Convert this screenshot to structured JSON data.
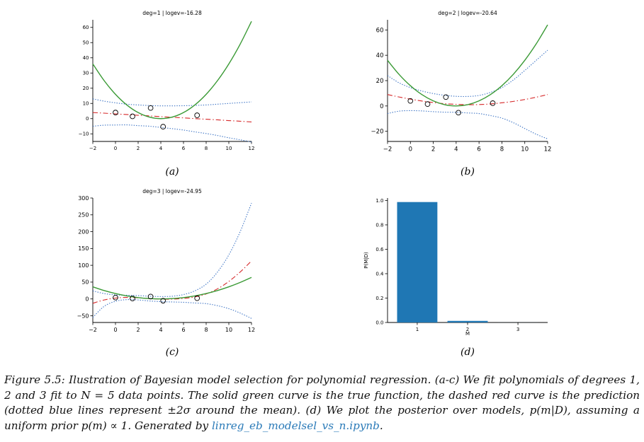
{
  "chart_data": [
    {
      "type": "line",
      "panel": "a",
      "title": "deg=1 | logev=-16.28",
      "xlim": [
        -2,
        12
      ],
      "ylim": [
        -15,
        65
      ],
      "xticks": [
        -2,
        0,
        2,
        4,
        6,
        8,
        10,
        12
      ],
      "yticks": [
        -10,
        0,
        10,
        20,
        30,
        40,
        50,
        60
      ],
      "x": [
        -2,
        -1,
        0,
        1,
        2,
        3,
        4,
        5,
        6,
        7,
        8,
        9,
        10,
        11,
        12
      ],
      "series": [
        {
          "name": "true function",
          "style": "solid",
          "color": "#3a9a35",
          "values": [
            36,
            25,
            16,
            9,
            4,
            1,
            0,
            1,
            4,
            9,
            16,
            25,
            36,
            49,
            64
          ]
        },
        {
          "name": "prediction",
          "style": "dashdot",
          "color": "#d62728",
          "values": [
            4,
            3.6,
            3.1,
            2.7,
            2.2,
            1.8,
            1.3,
            0.9,
            0.5,
            0,
            -0.4,
            -0.8,
            -1.3,
            -1.7,
            -2.2
          ]
        },
        {
          "name": "upper 2 sigma",
          "style": "dotted",
          "color": "#3a72c4",
          "values": [
            13,
            11.5,
            10.4,
            9.5,
            9.0,
            8.6,
            8.4,
            8.4,
            8.5,
            8.7,
            9.0,
            9.5,
            10,
            10.5,
            11
          ]
        },
        {
          "name": "lower 2 sigma",
          "style": "dotted",
          "color": "#3a72c4",
          "values": [
            -5,
            -4.3,
            -4.2,
            -4.1,
            -4.6,
            -5.0,
            -5.8,
            -6.6,
            -7.5,
            -8.7,
            -9.8,
            -11.1,
            -12.6,
            -13.9,
            -15.4
          ]
        }
      ],
      "points": [
        [
          0,
          4
        ],
        [
          1.5,
          1.5
        ],
        [
          3.1,
          7
        ],
        [
          4.2,
          -5.3
        ],
        [
          7.2,
          2.2
        ]
      ],
      "label": "(a)"
    },
    {
      "type": "line",
      "panel": "b",
      "title": "deg=2 | logev=-20.64",
      "xlim": [
        -2,
        12
      ],
      "ylim": [
        -28,
        68
      ],
      "xticks": [
        -2,
        0,
        2,
        4,
        6,
        8,
        10,
        12
      ],
      "yticks": [
        -20,
        0,
        20,
        40,
        60
      ],
      "x": [
        -2,
        -1,
        0,
        1,
        2,
        3,
        4,
        5,
        6,
        7,
        8,
        9,
        10,
        11,
        12
      ],
      "series": [
        {
          "name": "true function",
          "style": "solid",
          "color": "#3a9a35",
          "values": [
            36,
            25,
            16,
            9,
            4,
            1,
            0,
            1,
            4,
            9,
            16,
            25,
            36,
            49,
            64
          ]
        },
        {
          "name": "prediction",
          "style": "dashdot",
          "color": "#d62728",
          "values": [
            9,
            7.1,
            5.4,
            3.9,
            2.7,
            1.8,
            1.3,
            1,
            1.1,
            1.6,
            2.5,
            3.6,
            5.1,
            6.9,
            9
          ]
        },
        {
          "name": "upper 2 sigma",
          "style": "dotted",
          "color": "#3a72c4",
          "values": [
            24,
            18.3,
            14.5,
            11.8,
            9.8,
            8.4,
            7.6,
            7.5,
            8.3,
            10.7,
            14.5,
            20.5,
            28,
            36,
            44
          ]
        },
        {
          "name": "lower 2 sigma",
          "style": "dotted",
          "color": "#3a72c4",
          "values": [
            -6,
            -4.1,
            -3.7,
            -3.9,
            -4.5,
            -4.9,
            -5,
            -5.5,
            -6,
            -7.6,
            -9.6,
            -13.2,
            -17.8,
            -22.3,
            -26
          ]
        }
      ],
      "points": [
        [
          0,
          4
        ],
        [
          1.5,
          1.5
        ],
        [
          3.1,
          7
        ],
        [
          4.2,
          -5.3
        ],
        [
          7.2,
          2.2
        ]
      ],
      "label": "(b)"
    },
    {
      "type": "line",
      "panel": "c",
      "title": "deg=3 | logev=-24.95",
      "xlim": [
        -2,
        12
      ],
      "ylim": [
        -70,
        300
      ],
      "xticks": [
        -2,
        0,
        2,
        4,
        6,
        8,
        10,
        12
      ],
      "yticks": [
        -50,
        0,
        50,
        100,
        150,
        200,
        250,
        300
      ],
      "x": [
        -2,
        -1,
        0,
        1,
        2,
        3,
        4,
        5,
        6,
        7,
        8,
        9,
        10,
        11,
        12
      ],
      "series": [
        {
          "name": "true function",
          "style": "solid",
          "color": "#3a9a35",
          "values": [
            36,
            25,
            16,
            9,
            4,
            1,
            0,
            1,
            4,
            9,
            16,
            25,
            36,
            49,
            64
          ]
        },
        {
          "name": "prediction",
          "style": "dashdot",
          "color": "#d62728",
          "values": [
            -13,
            -3,
            2.5,
            4.5,
            3.5,
            1,
            -0.5,
            -0.5,
            1.5,
            6,
            15,
            30,
            52,
            80,
            113
          ]
        },
        {
          "name": "upper 2 sigma",
          "style": "dotted",
          "color": "#3a72c4",
          "values": [
            24,
            16,
            12,
            11,
            10,
            8,
            7,
            8,
            13,
            24,
            44,
            80,
            131,
            200,
            285
          ]
        },
        {
          "name": "lower 2 sigma",
          "style": "dotted",
          "color": "#3a72c4",
          "values": [
            -55,
            -22,
            -7,
            -2,
            -3,
            -6,
            -8,
            -9,
            -10,
            -12,
            -14,
            -20,
            -29,
            -42,
            -58
          ]
        }
      ],
      "points": [
        [
          0,
          4
        ],
        [
          1.5,
          1.5
        ],
        [
          3.1,
          7
        ],
        [
          4.2,
          -5.3
        ],
        [
          7.2,
          2.2
        ]
      ],
      "label": "(c)"
    },
    {
      "type": "bar",
      "panel": "d",
      "categories": [
        "1",
        "2",
        "3"
      ],
      "values": [
        0.987,
        0.013,
        0.0002
      ],
      "color": "#1f77b4",
      "xlabel": "M",
      "ylabel": "P(M|D)",
      "ylim": [
        0,
        1.02
      ],
      "yticks": [
        0.0,
        0.2,
        0.4,
        0.6,
        0.8,
        1.0
      ],
      "ytick_labels": [
        "0.0",
        "0.2",
        "0.4",
        "0.6",
        "0.8",
        "1.0"
      ],
      "label": "(d)"
    }
  ],
  "caption": {
    "text": "Figure 5.5: Ilustration of Bayesian model selection for polynomial regression. (a-c) We fit polynomials of degrees 1, 2 and 3 fit to N = 5 data points. The solid green curve is the true function, the dashed red curve is the prediction (dotted blue lines represent ±2σ around the mean). (d) We plot the posterior over models, p(m|D), assuming a uniform prior p(m) ∝ 1. Generated by ",
    "link": "linreg_eb_modelsel_vs_n.ipynb",
    "end": "."
  }
}
